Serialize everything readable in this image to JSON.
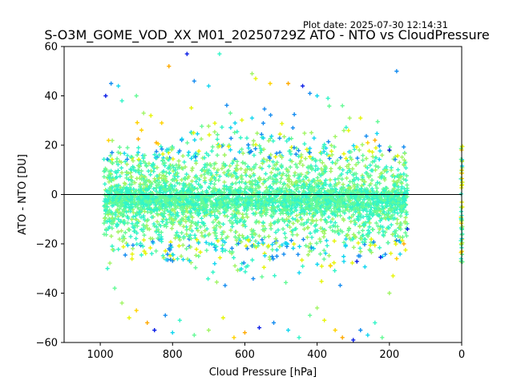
{
  "header": {
    "plot_date": "Plot date: 2025-07-30 12:14:31",
    "title": "S-O3M_GOME_VOD_XX_M01_20250729Z ATO - NTO vs CloudPressure"
  },
  "chart_data": {
    "type": "scatter",
    "title": "S-O3M_GOME_VOD_XX_M01_20250729Z ATO - NTO vs CloudPressure",
    "xlabel": "Cloud Pressure [hPa]",
    "ylabel": "ATO - NTO [DU]",
    "xlim": [
      1100,
      0
    ],
    "ylim": [
      -60,
      60
    ],
    "x_reversed": true,
    "xticks": [
      1000,
      800,
      600,
      400,
      200,
      0
    ],
    "yticks": [
      -60,
      -40,
      -20,
      0,
      20,
      40,
      60
    ],
    "xtick_labels": [
      "1000",
      "800",
      "600",
      "400",
      "200",
      "0"
    ],
    "ytick_labels": [
      "−60",
      "−40",
      "−20",
      "0",
      "20",
      "40",
      "60"
    ],
    "reference_line_y": 0,
    "marker": "plus",
    "grid": false,
    "colors": [
      "#0a1ee6",
      "#148cf0",
      "#12d6f0",
      "#32f5c8",
      "#64fa96",
      "#a0f564",
      "#e6f50a",
      "#ffd200",
      "#ffaa00"
    ],
    "point_cloud": {
      "core_center_y": -2,
      "core_x_range": [
        990,
        150
      ],
      "core_y_range": [
        -25,
        22
      ],
      "right_edge_cluster_x": 0,
      "right_edge_cluster_y_range": [
        -30,
        20
      ]
    },
    "points": [
      [
        985,
        40
      ],
      [
        970,
        45
      ],
      [
        950,
        44
      ],
      [
        940,
        38
      ],
      [
        900,
        40
      ],
      [
        880,
        33
      ],
      [
        860,
        32
      ],
      [
        830,
        29
      ],
      [
        810,
        52
      ],
      [
        760,
        57
      ],
      [
        740,
        46
      ],
      [
        700,
        44
      ],
      [
        670,
        57
      ],
      [
        640,
        33
      ],
      [
        580,
        49
      ],
      [
        570,
        47
      ],
      [
        530,
        45
      ],
      [
        480,
        45
      ],
      [
        440,
        44
      ],
      [
        420,
        41
      ],
      [
        400,
        40
      ],
      [
        370,
        39
      ],
      [
        330,
        36
      ],
      [
        310,
        31
      ],
      [
        280,
        31
      ],
      [
        260,
        21
      ],
      [
        240,
        22
      ],
      [
        200,
        18
      ],
      [
        180,
        50
      ],
      [
        160,
        0
      ],
      [
        980,
        -30
      ],
      [
        960,
        -38
      ],
      [
        940,
        -44
      ],
      [
        920,
        -50
      ],
      [
        900,
        -47
      ],
      [
        870,
        -52
      ],
      [
        850,
        -55
      ],
      [
        820,
        -49
      ],
      [
        800,
        -56
      ],
      [
        780,
        -51
      ],
      [
        740,
        -57
      ],
      [
        700,
        -55
      ],
      [
        660,
        -50
      ],
      [
        630,
        -58
      ],
      [
        600,
        -56
      ],
      [
        560,
        -54
      ],
      [
        520,
        -52
      ],
      [
        480,
        -55
      ],
      [
        450,
        -58
      ],
      [
        420,
        -49
      ],
      [
        400,
        -46
      ],
      [
        380,
        -51
      ],
      [
        350,
        -55
      ],
      [
        330,
        -58
      ],
      [
        300,
        -59
      ],
      [
        280,
        -55
      ],
      [
        260,
        -57
      ],
      [
        240,
        -52
      ],
      [
        220,
        -58
      ],
      [
        200,
        -40
      ],
      [
        190,
        -33
      ],
      [
        180,
        -26
      ],
      [
        160,
        -20
      ],
      [
        150,
        -14
      ]
    ]
  }
}
